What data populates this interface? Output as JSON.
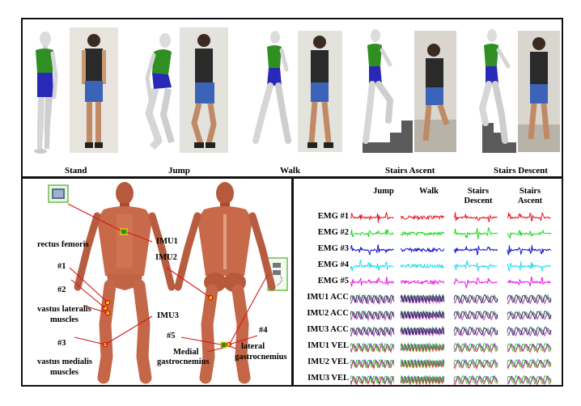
{
  "activities": [
    "Stand",
    "Jump",
    "Walk",
    "Stairs Ascent",
    "Stairs Descent"
  ],
  "anatomy": {
    "labels": {
      "imu1": "IMU1",
      "imu2": "IMU2",
      "imu3": "IMU3",
      "rectus_femoris": "rectus femoris",
      "s1": "#1",
      "s2": "#2",
      "s3": "#3",
      "s4": "#4",
      "s5": "#5",
      "vastus_lateralis_1": "vastus lateralis",
      "vastus_lateralis_2": "muscles",
      "vastus_medialis_1": "vastus medialis",
      "vastus_medialis_2": "muscles",
      "medial_1": "Medial",
      "medial_2": "gastrocnemius",
      "lateral_1": "lateral",
      "lateral_2": "gastrocnemius"
    }
  },
  "signals": {
    "columns": [
      {
        "line1": "Jump",
        "line2": ""
      },
      {
        "line1": "Walk",
        "line2": ""
      },
      {
        "line1": "Stairs",
        "line2": "Descent"
      },
      {
        "line1": "Stairs",
        "line2": "Ascent"
      }
    ],
    "rows": [
      {
        "label": "EMG #1",
        "kind": "emg",
        "color": "#e8141e"
      },
      {
        "label": "EMG #2",
        "kind": "emg",
        "color": "#1fd81f"
      },
      {
        "label": "EMG #3",
        "kind": "emg",
        "color": "#1414c8"
      },
      {
        "label": "EMG #4",
        "kind": "emg",
        "color": "#22dfe8"
      },
      {
        "label": "EMG #5",
        "kind": "emg",
        "color": "#e81ee0"
      },
      {
        "label": "IMU1 ACC",
        "kind": "imu",
        "colors": [
          "#3cd23c",
          "#c832c8",
          "#1e1e64"
        ]
      },
      {
        "label": "IMU2 ACC",
        "kind": "imu",
        "colors": [
          "#3cd23c",
          "#c832c8",
          "#1e1e64"
        ]
      },
      {
        "label": "IMU3 ACC",
        "kind": "imu",
        "colors": [
          "#3cd23c",
          "#c832c8",
          "#1e1e64"
        ]
      },
      {
        "label": "IMU1 VEL",
        "kind": "imu",
        "colors": [
          "#2a5aff",
          "#e8282a",
          "#32b432"
        ]
      },
      {
        "label": "IMU2 VEL",
        "kind": "imu",
        "colors": [
          "#2a5aff",
          "#e8282a",
          "#32b432"
        ]
      },
      {
        "label": "IMU3 VEL",
        "kind": "imu",
        "colors": [
          "#2a5aff",
          "#e8282a",
          "#32b432"
        ]
      }
    ]
  }
}
